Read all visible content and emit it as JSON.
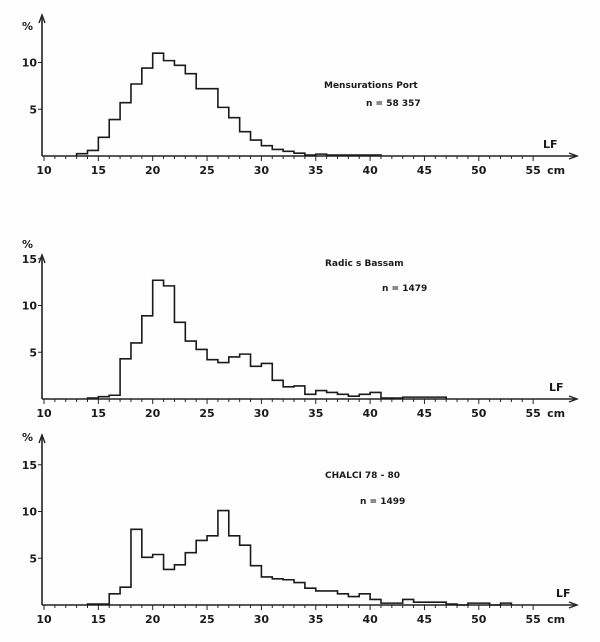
{
  "chart_data": [
    {
      "type": "histogram",
      "title": "Mensurations Port",
      "n_label": "n = 58 357",
      "ylabel": "%",
      "xlabel": "LF",
      "x_unit": "cm",
      "xlim": [
        10,
        55
      ],
      "x_ticks": [
        "10",
        "15",
        "20",
        "25",
        "30",
        "35",
        "40",
        "45",
        "50",
        "55"
      ],
      "y_ticks": [
        "5",
        "10"
      ],
      "bin_edges": [
        13,
        14,
        15,
        16,
        17,
        18,
        19,
        20,
        21,
        22,
        23,
        24,
        25,
        26,
        27,
        28,
        29,
        30,
        31,
        32,
        33,
        34,
        35,
        36,
        37,
        38,
        39,
        40,
        41
      ],
      "values": [
        0.25,
        0.6,
        2.0,
        3.9,
        5.7,
        7.7,
        9.4,
        11.0,
        10.2,
        9.7,
        8.8,
        7.2,
        7.2,
        5.2,
        4.1,
        2.6,
        1.7,
        1.1,
        0.7,
        0.5,
        0.3,
        0.1,
        0.2,
        0.1,
        0.1,
        0.1,
        0.1,
        0.1
      ]
    },
    {
      "type": "histogram",
      "title": "Radic  s  Bassam",
      "n_label": "n = 1479",
      "ylabel": "%",
      "xlabel": "LF",
      "x_unit": "cm",
      "xlim": [
        10,
        55
      ],
      "x_ticks": [
        "10",
        "15",
        "20",
        "25",
        "30",
        "35",
        "40",
        "45",
        "50",
        "55"
      ],
      "y_ticks": [
        "5",
        "10",
        "15"
      ],
      "bin_edges": [
        14,
        15,
        16,
        17,
        18,
        19,
        20,
        21,
        22,
        23,
        24,
        25,
        26,
        27,
        28,
        29,
        30,
        31,
        32,
        33,
        34,
        35,
        36,
        37,
        38,
        39,
        40,
        41,
        42,
        43,
        44,
        45,
        46,
        47
      ],
      "values": [
        0.1,
        0.25,
        0.4,
        4.3,
        6.0,
        8.9,
        12.7,
        12.1,
        8.2,
        6.2,
        5.3,
        4.2,
        3.9,
        4.5,
        4.8,
        3.5,
        3.8,
        2.0,
        1.3,
        1.4,
        0.5,
        0.9,
        0.7,
        0.5,
        0.3,
        0.5,
        0.7,
        0.1,
        0.1,
        0.2,
        0.2,
        0.2,
        0.2
      ]
    },
    {
      "type": "histogram",
      "title": "CHALCI      78 - 80",
      "n_label": "n = 1499",
      "ylabel": "%",
      "xlabel": "LF",
      "x_unit": "cm",
      "xlim": [
        10,
        55
      ],
      "x_ticks": [
        "10",
        "15",
        "20",
        "25",
        "30",
        "35",
        "40",
        "45",
        "50",
        "55"
      ],
      "y_ticks": [
        "5",
        "10",
        "15"
      ],
      "bin_edges": [
        14,
        15,
        16,
        17,
        18,
        19,
        20,
        21,
        22,
        23,
        24,
        25,
        26,
        27,
        28,
        29,
        30,
        31,
        32,
        33,
        34,
        35,
        36,
        37,
        38,
        39,
        40,
        41,
        42,
        43,
        44,
        45,
        46,
        47,
        48,
        49,
        50,
        51,
        52,
        53
      ],
      "values": [
        0.1,
        0.1,
        1.2,
        1.9,
        8.1,
        5.1,
        5.4,
        3.8,
        4.3,
        5.6,
        6.9,
        7.4,
        10.1,
        7.4,
        6.4,
        4.2,
        3.0,
        2.8,
        2.7,
        2.4,
        1.8,
        1.5,
        1.5,
        1.2,
        0.9,
        1.2,
        0.6,
        0.2,
        0.2,
        0.6,
        0.3,
        0.3,
        0.3,
        0.1,
        0.0,
        0.2,
        0.2,
        0.0,
        0.2
      ]
    }
  ]
}
